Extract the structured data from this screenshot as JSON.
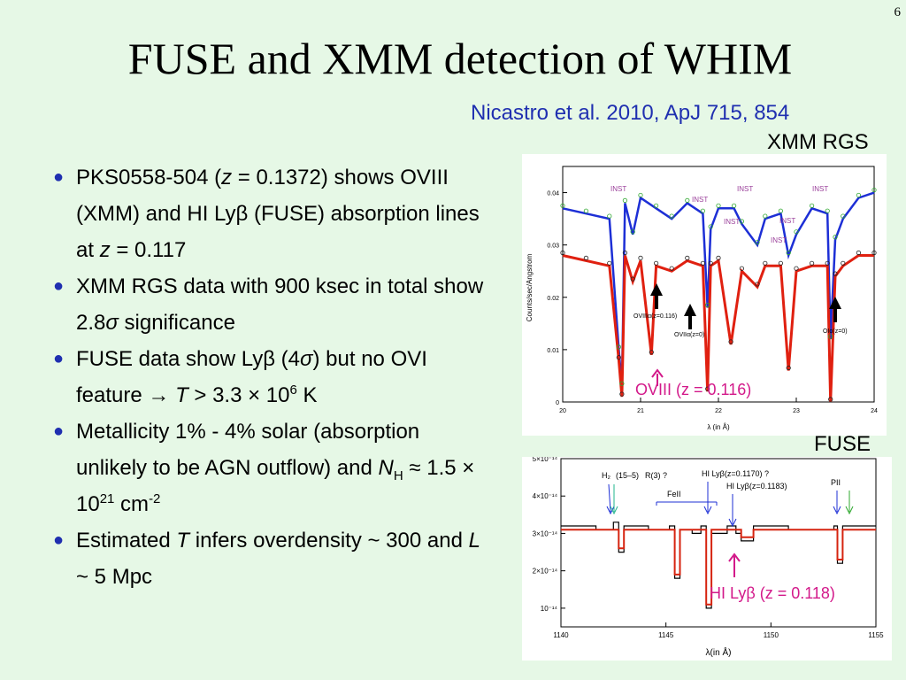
{
  "slide": {
    "number": "6",
    "title": "FUSE and XMM detection of WHIM",
    "citation": "Nicastro et al. 2010, ApJ 715, 854",
    "xmm_label": "XMM RGS",
    "fuse_label": "FUSE"
  },
  "bullets": [
    {
      "parts": [
        {
          "t": "PKS0558-504 ("
        },
        {
          "t": "z",
          "s": "i"
        },
        {
          "t": " = 0.1372) shows OVIII (XMM) and HI Lyβ (FUSE) absorption lines at "
        },
        {
          "t": "z",
          "s": "i"
        },
        {
          "t": " = 0.117"
        }
      ]
    },
    {
      "parts": [
        {
          "t": "XMM RGS data with 900 ksec in total show 2.8"
        },
        {
          "t": "σ",
          "s": "i"
        },
        {
          "t": " significance"
        }
      ]
    },
    {
      "parts": [
        {
          "t": "FUSE data show Lyβ (4"
        },
        {
          "t": "σ",
          "s": "i"
        },
        {
          "t": ") but no OVI feature → "
        },
        {
          "t": "T",
          "s": "i"
        },
        {
          "t": " > 3.3 × 10"
        },
        {
          "t": "6",
          "s": "sup"
        },
        {
          "t": " K"
        }
      ]
    },
    {
      "parts": [
        {
          "t": "Metallicity 1% - 4% solar (absorption unlikely to be AGN outflow) and "
        },
        {
          "t": "N",
          "s": "i"
        },
        {
          "t": "H",
          "s": "sub"
        },
        {
          "t": " ≈ 1.5 × 10"
        },
        {
          "t": "21",
          "s": "sup"
        },
        {
          "t": " cm"
        },
        {
          "t": "-2",
          "s": "sup"
        }
      ]
    },
    {
      "parts": [
        {
          "t": "Estimated "
        },
        {
          "t": "T",
          "s": "i"
        },
        {
          "t": " infers overdensity ~ 300 and "
        },
        {
          "t": "L",
          "s": "i"
        },
        {
          "t": " ~ 5 Mpc"
        }
      ]
    }
  ],
  "chart_data": [
    {
      "type": "line",
      "name": "XMM RGS spectrum",
      "xlabel": "λ (in Å)",
      "ylabel": "Counts/sec/Angstrom",
      "xlim": [
        20,
        24
      ],
      "ylim": [
        0,
        0.045
      ],
      "xticks": [
        "20",
        "21",
        "22",
        "23",
        "24"
      ],
      "yticks": [
        "0",
        "0.01",
        "0.02",
        "0.03",
        "0.04"
      ],
      "series": [
        {
          "color": "#1d2fd6",
          "x": [
            20.0,
            20.3,
            20.6,
            20.72,
            20.76,
            20.8,
            20.9,
            21.0,
            21.2,
            21.4,
            21.6,
            21.8,
            21.86,
            21.9,
            22.0,
            22.2,
            22.3,
            22.5,
            22.6,
            22.8,
            22.9,
            23.0,
            23.2,
            23.4,
            23.44,
            23.5,
            23.6,
            23.8,
            24.0
          ],
          "y": [
            0.037,
            0.036,
            0.035,
            0.01,
            0.003,
            0.038,
            0.032,
            0.039,
            0.037,
            0.035,
            0.038,
            0.036,
            0.018,
            0.033,
            0.037,
            0.037,
            0.034,
            0.03,
            0.035,
            0.036,
            0.028,
            0.032,
            0.037,
            0.036,
            0.012,
            0.031,
            0.035,
            0.039,
            0.04
          ]
        },
        {
          "color": "#e02010",
          "x": [
            20.0,
            20.3,
            20.6,
            20.72,
            20.76,
            20.8,
            20.9,
            21.0,
            21.14,
            21.2,
            21.4,
            21.6,
            21.8,
            21.86,
            21.9,
            22.0,
            22.16,
            22.3,
            22.5,
            22.6,
            22.8,
            22.9,
            23.0,
            23.2,
            23.4,
            23.44,
            23.5,
            23.6,
            23.8,
            24.0
          ],
          "y": [
            0.028,
            0.027,
            0.026,
            0.008,
            0.001,
            0.028,
            0.023,
            0.027,
            0.009,
            0.026,
            0.025,
            0.027,
            0.026,
            0.002,
            0.026,
            0.027,
            0.011,
            0.025,
            0.022,
            0.026,
            0.026,
            0.006,
            0.025,
            0.026,
            0.026,
            0.0,
            0.024,
            0.026,
            0.028,
            0.028
          ]
        }
      ],
      "annotations": [
        "INST",
        "INST",
        "INST",
        "INST",
        "INST",
        "INST",
        "INST",
        "OVIIIα(z=0.116)",
        "OVIIα(z=0)",
        "OIα(z=0)",
        "OVIII (z = 0.116)"
      ]
    },
    {
      "type": "line",
      "name": "FUSE spectrum",
      "xlabel": "λ(in Å)",
      "xlim": [
        1137,
        1155
      ],
      "ylim": [
        5e-15,
        5e-14
      ],
      "xticks": [
        "1140",
        "1145",
        "1150",
        "1155"
      ],
      "yticks": [
        "10⁻¹⁴",
        "2×10⁻¹⁴",
        "3×10⁻¹⁴",
        "4×10⁻¹⁴",
        "5×10⁻¹⁴"
      ],
      "series": [
        {
          "color": "#000000",
          "x": [
            1137,
            1139,
            1140,
            1140.3,
            1140.6,
            1142,
            1143.2,
            1143.5,
            1143.8,
            1144.5,
            1145,
            1145.3,
            1145.6,
            1146.5,
            1147,
            1147.3,
            1148,
            1150,
            1152.6,
            1152.8,
            1153.1,
            1155
          ],
          "y": [
            3.2e-14,
            3.1e-14,
            3.3e-14,
            2.5e-14,
            3.2e-14,
            3.1e-14,
            3.2e-14,
            1.8e-14,
            3.1e-14,
            3e-14,
            3.2e-14,
            1e-14,
            3e-14,
            3.2e-14,
            3e-14,
            2.8e-14,
            3.2e-14,
            3.1e-14,
            3.2e-14,
            2.2e-14,
            3.2e-14,
            3.2e-14
          ]
        },
        {
          "color": "#d62410",
          "x": [
            1137,
            1139,
            1140,
            1140.3,
            1140.6,
            1142,
            1143.2,
            1143.5,
            1143.8,
            1144.5,
            1145,
            1145.3,
            1145.6,
            1146.5,
            1147,
            1147.3,
            1148,
            1150,
            1152.6,
            1152.8,
            1153.1,
            1155
          ],
          "y": [
            3.1e-14,
            3.1e-14,
            3.1e-14,
            2.6e-14,
            3.1e-14,
            3.1e-14,
            3.1e-14,
            1.9e-14,
            3.1e-14,
            3.1e-14,
            3.1e-14,
            1.1e-14,
            3.1e-14,
            3.1e-14,
            3.1e-14,
            2.9e-14,
            3.1e-14,
            3.1e-14,
            3.1e-14,
            2.3e-14,
            3.1e-14,
            3.1e-14
          ]
        }
      ],
      "annotations": [
        "H₂",
        "(15–5)",
        "R(3) ?",
        "FeII",
        "HI Lyβ(z=0.1170) ?",
        "HI Lyβ(z=0.1183)",
        "PII",
        "HI Lyβ (z = 0.118)"
      ]
    }
  ]
}
